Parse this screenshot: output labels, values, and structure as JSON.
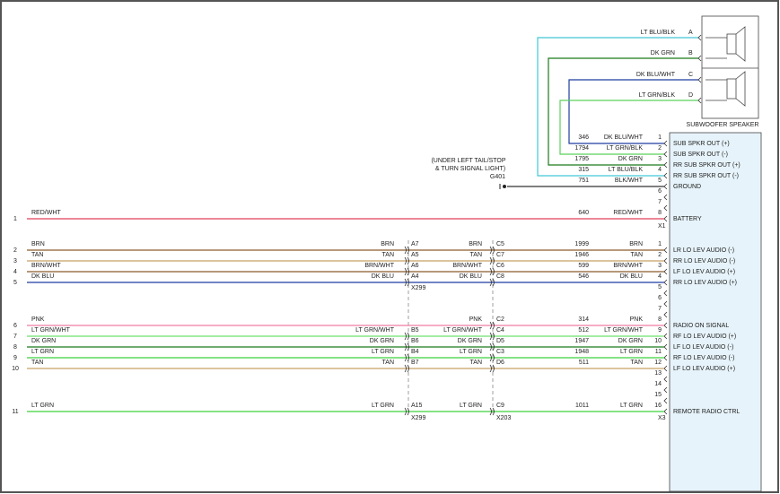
{
  "subwoofer": {
    "label": "SUBWOOFER SPEAKER",
    "pins": [
      "A",
      "B",
      "C",
      "D"
    ]
  },
  "ground": {
    "note": [
      "(UNDER LEFT TAIL/STOP",
      "& TURN SIGNAL LIGHT)"
    ],
    "id": "G401"
  },
  "connectors": {
    "x299": "X299",
    "x203": "X203"
  },
  "x1": {
    "label": "X1",
    "pins": [
      {
        "pin": "1",
        "function": "SUB SPKR OUT (+)",
        "circuit": "346",
        "wire": "DK BLU/WHT",
        "color": "#1e3ca0"
      },
      {
        "pin": "2",
        "function": "SUB SPKR OUT (-)",
        "circuit": "1794",
        "wire": "LT GRN/BLK",
        "color": "#5ad05a"
      },
      {
        "pin": "3",
        "function": "RR SUB SPKR OUT (+)",
        "circuit": "1795",
        "wire": "DK GRN",
        "color": "#1a7a1a"
      },
      {
        "pin": "4",
        "function": "RR SUB SPKR OUT (-)",
        "circuit": "315",
        "wire": "LT BLU/BLK",
        "color": "#40c8d8"
      },
      {
        "pin": "5",
        "function": "GROUND",
        "circuit": "751",
        "wire": "BLK/WHT",
        "color": "#333333"
      },
      {
        "pin": "6"
      },
      {
        "pin": "7"
      },
      {
        "pin": "8",
        "function": "BATTERY",
        "circuit": "640",
        "wire": "RED/WHT",
        "color": "#e0405a",
        "row": "1"
      }
    ]
  },
  "x3": {
    "label": "X3",
    "pins": [
      {
        "pin": "1",
        "function": "LR LO LEV AUDIO (-)",
        "circuit": "1999",
        "wire": "BRN",
        "color": "#8b5a2b",
        "row": "2",
        "x299": "A7",
        "x203": "C5"
      },
      {
        "pin": "2",
        "function": "RR LO LEV AUDIO (-)",
        "circuit": "1946",
        "wire": "TAN",
        "color": "#c8a064",
        "row": "3",
        "x299": "A5",
        "x203": "C7"
      },
      {
        "pin": "3",
        "function": "LF LO LEV AUDIO (+)",
        "circuit": "599",
        "wire": "BRN/WHT",
        "color": "#8b5a2b",
        "row": "4",
        "x299": "A6",
        "x203": "C6"
      },
      {
        "pin": "4",
        "function": "RR LO LEV AUDIO (+)",
        "circuit": "546",
        "wire": "DK BLU",
        "color": "#1e3ca0",
        "row": "5",
        "x299": "A4",
        "x203": "C8"
      },
      {
        "pin": "5"
      },
      {
        "pin": "6"
      },
      {
        "pin": "7"
      },
      {
        "pin": "8",
        "function": "RADIO ON SIGNAL",
        "circuit": "314",
        "wire": "PNK",
        "color": "#f07ca0",
        "row": "6",
        "x203": "C2"
      },
      {
        "pin": "9",
        "function": "RF LO LEV AUDIO (+)",
        "circuit": "512",
        "wire": "LT GRN/WHT",
        "color": "#6ee06e",
        "row": "7",
        "x299": "B5",
        "x203": "C4"
      },
      {
        "pin": "10",
        "function": "LF LO LEV AUDIO (-)",
        "circuit": "1947",
        "wire": "DK GRN",
        "color": "#1a7a1a",
        "row": "8",
        "x299": "B6",
        "x203": "D5"
      },
      {
        "pin": "11",
        "function": "RF LO LEV AUDIO (-)",
        "circuit": "1948",
        "wire": "LT GRN",
        "color": "#3cd23c",
        "row": "9",
        "x299": "B4",
        "x203": "C3"
      },
      {
        "pin": "12",
        "function": "LF LO LEV AUDIO (+)",
        "circuit": "511",
        "wire": "TAN",
        "color": "#c8a064",
        "row": "10",
        "x299": "B7",
        "x203": "D6"
      },
      {
        "pin": "13"
      },
      {
        "pin": "14"
      },
      {
        "pin": "15"
      },
      {
        "pin": "16",
        "function": "REMOTE RADIO CTRL",
        "circuit": "1011",
        "wire": "LT GRN",
        "color": "#3cd23c",
        "row": "11",
        "x299": "A15",
        "x203": "C9"
      }
    ]
  }
}
